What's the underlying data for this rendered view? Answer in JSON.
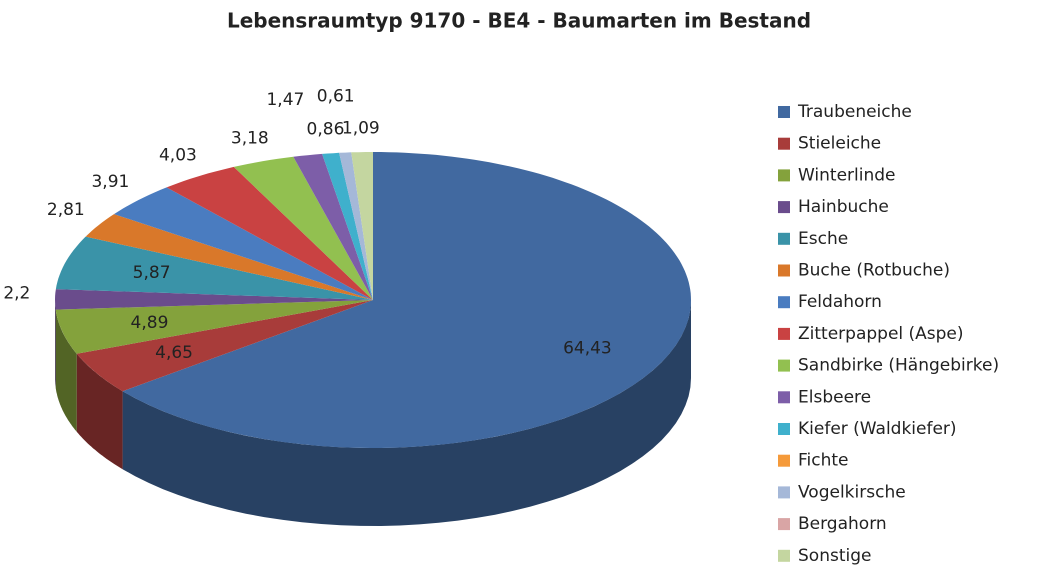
{
  "chart_data": {
    "type": "pie3d",
    "title": "Lebensraumtyp 9170 - BE4 - Baumarten im Bestand",
    "categories": [
      "Traubeneiche",
      "Stieleiche",
      "Winterlinde",
      "Hainbuche",
      "Esche",
      "Buche (Rotbuche)",
      "Feldahorn",
      "Zitterpappel (Aspe)",
      "Sandbirke (Hängebirke)",
      "Elsbeere",
      "Kiefer (Waldkiefer)",
      "Fichte",
      "Vogelkirsche",
      "Bergahorn",
      "Sonstige"
    ],
    "values": [
      64.43,
      4.65,
      4.89,
      2.2,
      5.87,
      2.81,
      3.91,
      4.03,
      3.18,
      1.47,
      0.86,
      0,
      0.61,
      0,
      1.09
    ],
    "value_labels": [
      "64,43",
      "4,65",
      "4,89",
      "2,2",
      "5,87",
      "2,81",
      "3,91",
      "4,03",
      "3,18",
      "1,47",
      "0,86",
      null,
      "0,61",
      null,
      "1,09"
    ],
    "colors": [
      "#4169a0",
      "#a83c3a",
      "#84a23c",
      "#6a4c8c",
      "#3a93a8",
      "#d9782a",
      "#4a7cc0",
      "#c94242",
      "#92c050",
      "#7d5ea8",
      "#3fb0cc",
      "#f59a3a",
      "#a5b8d8",
      "#d9a5a5",
      "#c4d6a0"
    ],
    "legend": "right"
  }
}
